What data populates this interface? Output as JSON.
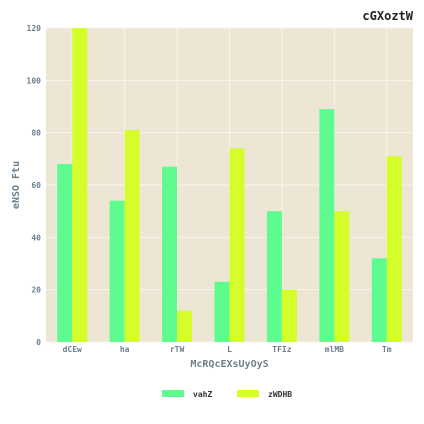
{
  "chart_data": {
    "type": "bar",
    "title": "cGXoztW",
    "xlabel": "McRQcEXsUyOyS",
    "ylabel": "eNSO Ftu",
    "categories": [
      "dCEw",
      "ha",
      "rTW",
      "L",
      "TFIz",
      "mlMB",
      "Tm"
    ],
    "series": [
      {
        "name": "vahZ",
        "values": [
          68,
          54,
          67,
          23,
          50,
          89,
          32
        ],
        "color": "#5efb8e"
      },
      {
        "name": "zWDHB",
        "values": [
          120,
          81,
          12,
          74,
          20,
          50,
          71
        ],
        "color": "#d4fd2a"
      }
    ],
    "ylim": [
      0,
      120
    ],
    "yticks": [
      0,
      20,
      40,
      60,
      80,
      100,
      120
    ],
    "grid": true,
    "legend_position": "bottom-center",
    "background_color": "#ede6d4",
    "grid_color": "#f8f5ec"
  }
}
